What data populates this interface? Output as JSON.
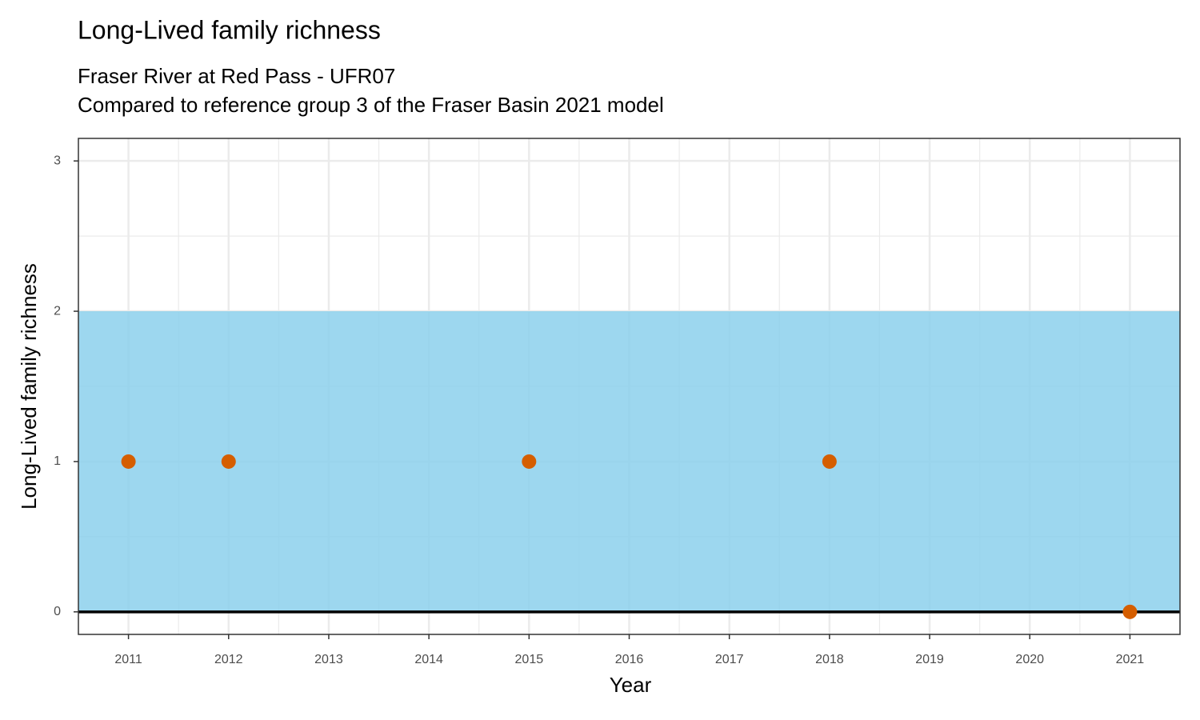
{
  "chart_data": {
    "type": "scatter",
    "title": "Long-Lived family richness",
    "subtitle": [
      "Fraser River at Red Pass - UFR07",
      "Compared to reference group 3 of the Fraser Basin 2021 model"
    ],
    "x_label": "Year",
    "y_label": "Long-Lived family richness",
    "x": [
      2011,
      2012,
      2015,
      2018,
      2021
    ],
    "values": [
      1,
      1,
      1,
      1,
      0
    ],
    "color": "#d55e00",
    "band": [
      0,
      2
    ],
    "band_color": "#87ceeb",
    "hline": 0,
    "xlim": [
      2010.5,
      2021.5
    ],
    "xticks": [
      2011,
      2012,
      2013,
      2014,
      2015,
      2016,
      2017,
      2018,
      2019,
      2020,
      2021
    ],
    "ylim": [
      -0.15,
      3.15
    ],
    "yticks": [
      0,
      1,
      2,
      3
    ],
    "grid": true
  }
}
